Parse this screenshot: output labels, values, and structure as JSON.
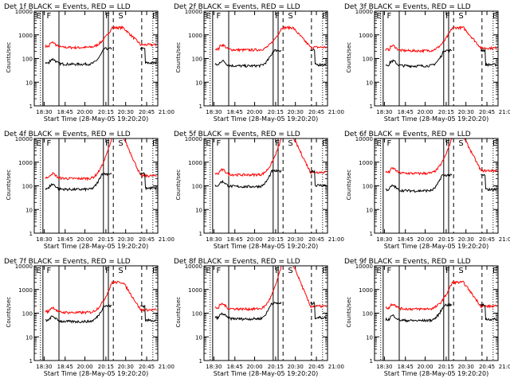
{
  "chart_data": {
    "type": "line",
    "ylabel": "Counts/sec",
    "xlabel": "Start Time (28-May-05 19:20:20)",
    "yscale": "log",
    "ylim": [
      1,
      10000
    ],
    "xlim": [
      "18:20",
      "21:00"
    ],
    "x_tick_labels": [
      "18:30",
      "18:45",
      "20:00",
      "20:15",
      "20:30",
      "20:45",
      "21:00"
    ],
    "y_tick_labels": [
      "1",
      "10",
      "100",
      "1000",
      "10000"
    ],
    "series_colors": {
      "events": "#000000",
      "lld": "#ff0000"
    },
    "region_labels": [
      "E",
      "F",
      "F",
      "S",
      "E"
    ],
    "panels": [
      {
        "title": "Det 1f BLACK = Events, RED = LLD",
        "lld_base": 330,
        "events_base": 65,
        "peak": 2000
      },
      {
        "title": "Det 2f BLACK = Events, RED = LLD",
        "lld_base": 260,
        "events_base": 55,
        "peak": 2000
      },
      {
        "title": "Det 3f BLACK = Events, RED = LLD",
        "lld_base": 240,
        "events_base": 55,
        "peak": 2000
      },
      {
        "title": "Det 4f BLACK = Events, RED = LLD",
        "lld_base": 230,
        "events_base": 80,
        "peak": 12000
      },
      {
        "title": "Det 5f BLACK = Events, RED = LLD",
        "lld_base": 330,
        "events_base": 105,
        "peak": 12000
      },
      {
        "title": "Det 6f BLACK = Events, RED = LLD",
        "lld_base": 380,
        "events_base": 70,
        "peak": 12000
      },
      {
        "title": "Det 7f BLACK = Events, RED = LLD",
        "lld_base": 120,
        "events_base": 50,
        "peak": 2000
      },
      {
        "title": "Det 8f BLACK = Events, RED = LLD",
        "lld_base": 170,
        "events_base": 65,
        "peak": 12000
      },
      {
        "title": "Det 9f BLACK = Events, RED = LLD",
        "lld_base": 170,
        "events_base": 55,
        "peak": 2000
      }
    ]
  }
}
